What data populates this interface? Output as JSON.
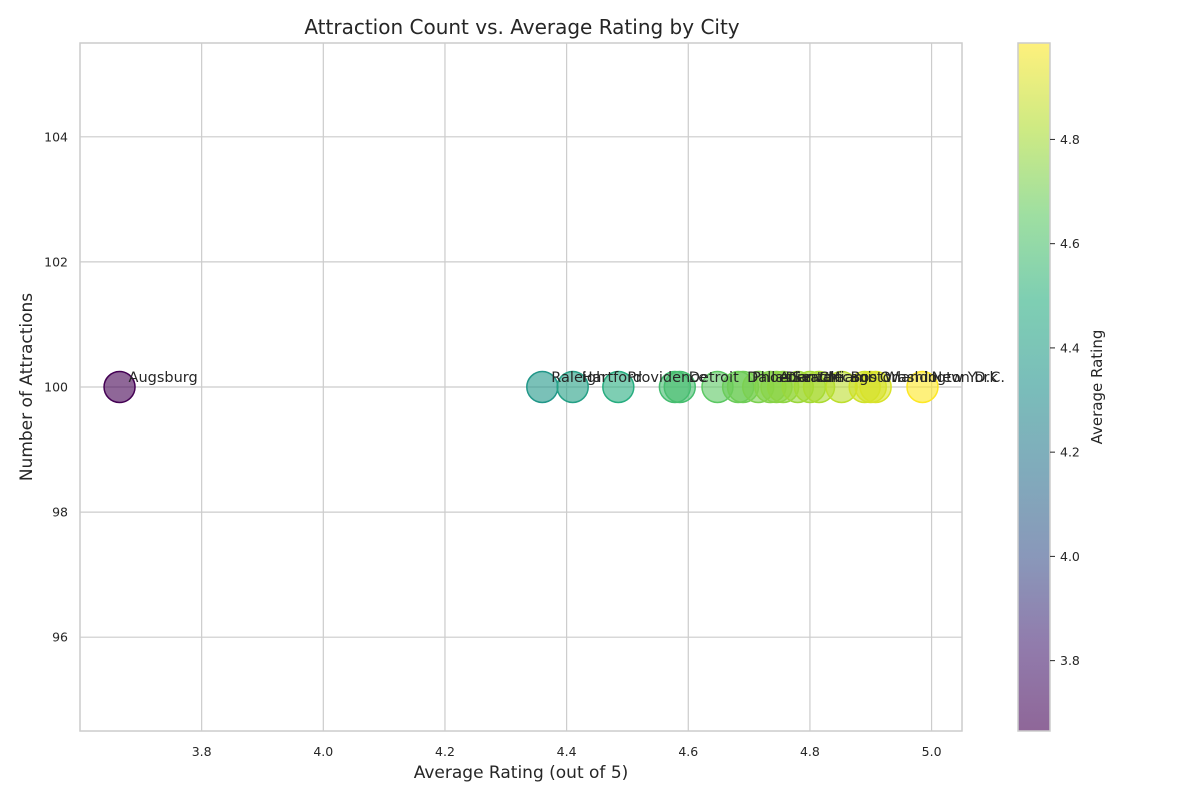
{
  "chart_data": {
    "type": "scatter",
    "title": "Attraction Count vs. Average Rating by City",
    "xlabel": "Average Rating (out of 5)",
    "ylabel": "Number of Attractions",
    "xlim": [
      3.6,
      5.05
    ],
    "ylim": [
      94.5,
      105.5
    ],
    "xticks": [
      "3.8",
      "4.0",
      "4.2",
      "4.4",
      "4.6",
      "4.8",
      "5.0"
    ],
    "yticks": [
      "96",
      "98",
      "100",
      "102",
      "104"
    ],
    "grid": true,
    "colormap": "viridis",
    "colorbar": {
      "label": "Average Rating",
      "range": [
        3.665,
        4.985
      ],
      "ticks": [
        "3.8",
        "4.0",
        "4.2",
        "4.4",
        "4.6",
        "4.8"
      ]
    },
    "points": [
      {
        "label": "Augsburg",
        "x": 3.665,
        "y": 100
      },
      {
        "label": "Raleigh",
        "x": 4.36,
        "y": 100
      },
      {
        "label": "Hartford",
        "x": 4.41,
        "y": 100
      },
      {
        "label": "Providence",
        "x": 4.485,
        "y": 100
      },
      {
        "label": "",
        "x": 4.578,
        "y": 100
      },
      {
        "label": "Detroit",
        "x": 4.586,
        "y": 100
      },
      {
        "label": "",
        "x": 4.648,
        "y": 100
      },
      {
        "label": "Dallas",
        "x": 4.682,
        "y": 100
      },
      {
        "label": "Phoenix",
        "x": 4.69,
        "y": 100
      },
      {
        "label": "",
        "x": 4.715,
        "y": 100
      },
      {
        "label": "Atlanta",
        "x": 4.735,
        "y": 100
      },
      {
        "label": "Denver",
        "x": 4.745,
        "y": 100
      },
      {
        "label": "Seattle",
        "x": 4.756,
        "y": 100
      },
      {
        "label": "",
        "x": 4.78,
        "y": 100
      },
      {
        "label": "Chicago",
        "x": 4.8,
        "y": 100
      },
      {
        "label": "Miami",
        "x": 4.815,
        "y": 100
      },
      {
        "label": "Boston",
        "x": 4.852,
        "y": 100
      },
      {
        "label": "",
        "x": 4.89,
        "y": 100
      },
      {
        "label": "Orlando",
        "x": 4.9,
        "y": 100
      },
      {
        "label": "Washington D.C.",
        "x": 4.908,
        "y": 100
      },
      {
        "label": "New York",
        "x": 4.985,
        "y": 100
      }
    ]
  }
}
